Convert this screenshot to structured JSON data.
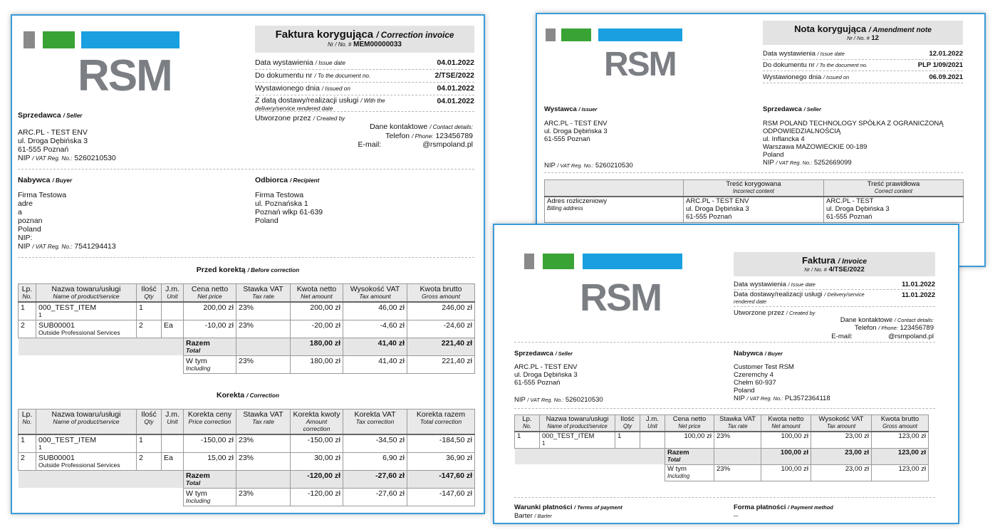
{
  "brand": {
    "logo": "RSM",
    "gray": "#898989",
    "green": "#3aa336",
    "blue": "#1aa0e0"
  },
  "d1": {
    "title": "Faktura korygująca",
    "title_en": "/ Correction invoice",
    "nr_label": "Nr / No. #",
    "nr": "MEM00000033",
    "meta": [
      {
        "l": "Data wystawienia",
        "e": "/ Issue date",
        "v": "04.01.2022"
      },
      {
        "l": "Do dokumentu nr",
        "e": "/ To the document no.",
        "v": "2/TSE/2022"
      },
      {
        "l": "Wystawionego dnia",
        "e": "/ Issued on",
        "v": "04.01.2022"
      },
      {
        "l": "Z datą dostawy/realizacji usługi",
        "e": "/ With the delivery/service rendered date",
        "v": "04.01.2022"
      }
    ],
    "created": "Utworzone przez",
    "created_e": "/ Created by",
    "contact": "Dane kontaktowe",
    "contact_e": "/ Contact details:",
    "phone": "Telefon",
    "phone_e": "/ Phone:",
    "phone_v": "123456789",
    "email": "E-mail:",
    "email_v": "@rsmpoland.pl",
    "seller_h": "Sprzedawca",
    "seller_he": "/ Seller",
    "seller": [
      "ARC.PL - TEST ENV",
      "ul. Droga Dębińska 3",
      "61-555 Poznań"
    ],
    "nip": "NIP",
    "nip_e": "/ VAT Reg. No.:",
    "seller_nip": "5260210530",
    "buyer_h": "Nabywca",
    "buyer_he": "/ Buyer",
    "buyer": [
      "Firma Testowa",
      "adre",
      "a",
      "poznan",
      "Poland",
      "NIP:"
    ],
    "buyer_nip": "7541294413",
    "rec_h": "Odbiorca",
    "rec_he": "/ Recipient",
    "rec": [
      "Firma Testowa",
      "ul. Poznańska 1",
      "Poznań wlkp 61-639",
      "Poland"
    ],
    "before_h": "Przed korektą",
    "before_he": "/ Before correction",
    "corr_h": "Korekta",
    "corr_he": "/ Correction",
    "t1_head": [
      [
        "Lp.",
        "No."
      ],
      [
        "Nazwa towaru/usługi",
        "Name of product/service"
      ],
      [
        "Ilość",
        "Qty"
      ],
      [
        "J.m.",
        "Unit"
      ],
      [
        "Cena netto",
        "Net price"
      ],
      [
        "Stawka VAT",
        "Tax rate"
      ],
      [
        "Kwota netto",
        "Net amount"
      ],
      [
        "Wysokość VAT",
        "Tax amount"
      ],
      [
        "Kwota brutto",
        "Gross amount"
      ]
    ],
    "t1_rows": [
      {
        "lp": "1",
        "name": "000_TEST_ITEM",
        "sub": "1",
        "qty": "1",
        "unit": "",
        "price": "200,00 zł",
        "rate": "23%",
        "net": "200,00 zł",
        "vat": "46,00 zł",
        "gross": "246,00 zł"
      },
      {
        "lp": "2",
        "name": "SUB00001",
        "sub": "Outside Professional Services",
        "qty": "2",
        "unit": "Ea",
        "price": "-10,00 zł",
        "rate": "23%",
        "net": "-20,00 zł",
        "vat": "-4,60 zł",
        "gross": "-24,60 zł"
      }
    ],
    "t1_total": {
      "l": "Razem",
      "e": "Total",
      "net": "180,00 zł",
      "vat": "41,40 zł",
      "gross": "221,40 zł"
    },
    "t1_incl": {
      "l": "W tym",
      "e": "Including",
      "rate": "23%",
      "net": "180,00 zł",
      "vat": "41,40 zł",
      "gross": "221,40 zł"
    },
    "t2_head": [
      [
        "Lp.",
        "No."
      ],
      [
        "Nazwa towaru/usługi",
        "Name of product/service"
      ],
      [
        "Ilość",
        "Qty"
      ],
      [
        "J.m.",
        "Unit"
      ],
      [
        "Korekta ceny",
        "Price correction"
      ],
      [
        "Stawka VAT",
        "Tax rate"
      ],
      [
        "Korekta kwoty",
        "Amount correction"
      ],
      [
        "Korekta VAT",
        "Tax correction"
      ],
      [
        "Korekta razem",
        "Total correction"
      ]
    ],
    "t2_rows": [
      {
        "lp": "1",
        "name": "000_TEST_ITEM",
        "sub": "1",
        "qty": "1",
        "unit": "",
        "price": "-150,00 zł",
        "rate": "23%",
        "net": "-150,00 zł",
        "vat": "-34,50 zł",
        "gross": "-184,50 zł"
      },
      {
        "lp": "2",
        "name": "SUB00001",
        "sub": "Outside Professional Services",
        "qty": "2",
        "unit": "Ea",
        "price": "15,00 zł",
        "rate": "23%",
        "net": "30,00 zł",
        "vat": "6,90 zł",
        "gross": "36,90 zł"
      }
    ],
    "t2_total": {
      "l": "Razem",
      "e": "Total",
      "net": "-120,00 zł",
      "vat": "-27,60 zł",
      "gross": "-147,60 zł"
    },
    "t2_incl": {
      "l": "W tym",
      "e": "Including",
      "rate": "23%",
      "net": "-120,00 zł",
      "vat": "-27,60 zł",
      "gross": "-147,60 zł"
    }
  },
  "d2": {
    "title": "Nota korygująca",
    "title_en": "/ Amendment note",
    "nr_label": "Nr / No. #",
    "nr": "12",
    "meta": [
      {
        "l": "Data wystawienia",
        "e": "/ Issue date",
        "v": "12.01.2022"
      },
      {
        "l": "Do dokumentu nr",
        "e": "/ To the document no.",
        "v": "PLP 1/09/2021"
      },
      {
        "l": "Wystawionego dnia",
        "e": "/ Issued on",
        "v": "06.09.2021"
      }
    ],
    "issuer_h": "Wystawca",
    "issuer_he": "/ Issuer",
    "issuer": [
      "ARC.PL - TEST ENV",
      "ul. Droga Dębińska 3",
      "61-555 Poznań"
    ],
    "issuer_nip": "5260210530",
    "seller_h": "Sprzedawca",
    "seller_he": "/ Seller",
    "seller": [
      "RSM POLAND TECHNOLOGY SPÓŁKA Z OGRANICZONĄ",
      "ODPOWIEDZIALNOŚCIĄ",
      "ul. Inflancka 4",
      "Warszawa MAZOWIECKIE 00-189",
      "Poland"
    ],
    "seller_nip": "5252669099",
    "nip": "NIP",
    "nip_e": "/ VAT Reg. No.:",
    "th": [
      [
        "",
        ""
      ],
      [
        "Treść korygowana",
        "Incorrect content"
      ],
      [
        "Treść prawidłowa",
        "Correct content"
      ]
    ],
    "row": {
      "l": "Adres rozliczeniowy",
      "e": "Billing address",
      "a": [
        "ARC.PL - TEST ENV",
        "ul. Droga Dębińska 3",
        "61-555 Poznań"
      ],
      "b": [
        "ARC.PL - TEST",
        "ul. Droga Dębińska 3",
        "61-555 Poznań"
      ]
    }
  },
  "d3": {
    "title": "Faktura",
    "title_en": "/ Invoice",
    "nr_label": "Nr / No. #",
    "nr": "4/TSE/2022",
    "meta": [
      {
        "l": "Data wystawienia",
        "e": "/ Issue date",
        "v": "11.01.2022"
      },
      {
        "l": "Data dostawy/realizacji usługi",
        "e": "/ Delivery/service rendered date",
        "v": "11.01.2022"
      }
    ],
    "created": "Utworzone przez",
    "created_e": "/ Created by",
    "contact": "Dane kontaktowe",
    "contact_e": "/ Contact details:",
    "phone": "Telefon",
    "phone_e": "/ Phone:",
    "phone_v": "123456789",
    "email": "E-mail:",
    "email_v": "@rsmpoland.pl",
    "seller_h": "Sprzedawca",
    "seller_he": "/ Seller",
    "seller": [
      "ARC.PL - TEST ENV",
      "ul. Droga Dębińska 3",
      "61-555 Poznań"
    ],
    "seller_nip": "5260210530",
    "buyer_h": "Nabywca",
    "buyer_he": "/ Buyer",
    "buyer": [
      "Customer Test RSM",
      "Czeremchy 4",
      "Chełm 60-937",
      "Poland"
    ],
    "buyer_nip": "PL3572364118",
    "nip": "NIP",
    "nip_e": "/ VAT Reg. No.:",
    "head": [
      [
        "Lp.",
        "No."
      ],
      [
        "Nazwa towaru/usługi",
        "Name of product/service"
      ],
      [
        "Ilość",
        "Qty"
      ],
      [
        "J.m.",
        "Unit"
      ],
      [
        "Cena netto",
        "Net price"
      ],
      [
        "Stawka VAT",
        "Tax rate"
      ],
      [
        "Kwota netto",
        "Net amount"
      ],
      [
        "Wysokość VAT",
        "Tax amount"
      ],
      [
        "Kwota brutto",
        "Gross amount"
      ]
    ],
    "rows": [
      {
        "lp": "1",
        "name": "000_TEST_ITEM",
        "sub": "1",
        "qty": "1",
        "unit": "",
        "price": "100,00 zł",
        "rate": "23%",
        "net": "100,00 zł",
        "vat": "23,00 zł",
        "gross": "123,00 zł"
      }
    ],
    "total": {
      "l": "Razem",
      "e": "Total",
      "net": "100,00 zł",
      "vat": "23,00 zł",
      "gross": "123,00 zł"
    },
    "incl": {
      "l": "W tym",
      "e": "Including",
      "rate": "23%",
      "net": "100,00 zł",
      "vat": "23,00 zł",
      "gross": "123,00 zł"
    },
    "terms_h": "Warunki płatności",
    "terms_he": "/ Terms of payment",
    "terms": "Barter",
    "terms_e": "/ Barter",
    "method_h": "Forma płatności",
    "method_he": "/ Payment method",
    "method": "--"
  }
}
